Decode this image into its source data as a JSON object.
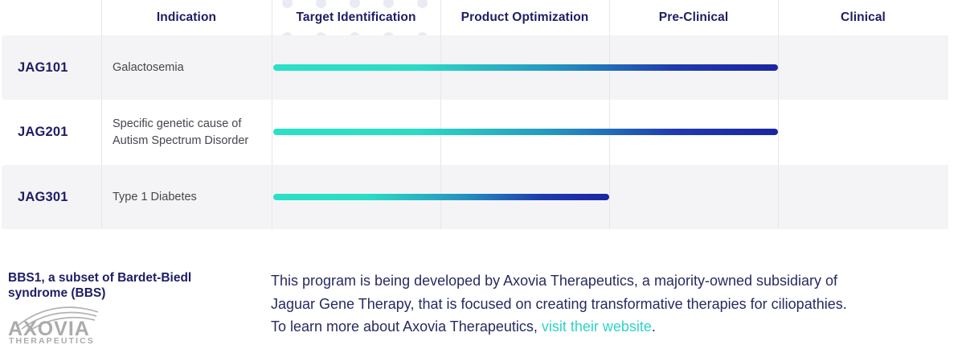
{
  "table": {
    "headers": [
      "Indication",
      "Target Identification",
      "Product Optimization",
      "Pre-Clinical",
      "Clinical"
    ],
    "rows": [
      {
        "program": "JAG101",
        "indication": "Galactosemia",
        "stages_completed": [
          "Target Identification",
          "Product Optimization",
          "Pre-Clinical"
        ],
        "bar_span_columns": 3
      },
      {
        "program": "JAG201",
        "indication": "Specific genetic cause of Autism Spectrum Disorder",
        "stages_completed": [
          "Target Identification",
          "Product Optimization",
          "Pre-Clinical"
        ],
        "bar_span_columns": 3
      },
      {
        "program": "JAG301",
        "indication": "Type 1 Diabetes",
        "stages_completed": [
          "Target Identification",
          "Product Optimization"
        ],
        "bar_span_columns": 2
      }
    ]
  },
  "footnote": {
    "heading_line1": "BBS1, a subset of Bardet-Biedl",
    "heading_line2": "syndrome (BBS)",
    "logo_name": "AXOVIA",
    "logo_subtitle": "THERAPEUTICS"
  },
  "description": {
    "line1": "This program is being developed by Axovia Therapeutics, a majority-owned subsidiary of",
    "line2": "Jaguar Gene Therapy, that is focused on creating transformative therapies for ciliopathies.",
    "line3_prefix": "To learn more about Axovia Therapeutics, ",
    "link_label": "visit their website",
    "line3_suffix": "."
  },
  "colors": {
    "heading_navy": "#1d1d66",
    "paragraph_navy": "#272b60",
    "indication_gray": "#45454e",
    "row_stripe_gray": "#f4f4f6",
    "grid_line": "#e7e7ec",
    "bar_gradient_start": "#2be0c6",
    "bar_gradient_end": "#1b26a1",
    "link_teal": "#2fd4c6",
    "logo_gray": "#ababab",
    "dot_lavender": "#eaeaf4"
  }
}
